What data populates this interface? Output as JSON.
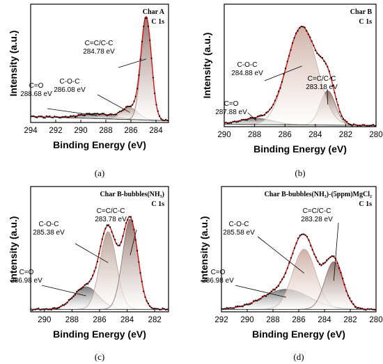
{
  "chart_data": [
    {
      "type": "line",
      "panel": "(a)",
      "title": "Char A",
      "subtitle": "C 1s",
      "xlabel": "Binding Energy (eV)",
      "ylabel": "Intensity (a.u.)",
      "xlim": [
        294,
        283
      ],
      "xticks": [
        294,
        292,
        290,
        288,
        286,
        284
      ],
      "ylim": [
        0,
        1.0
      ],
      "peaks": [
        {
          "label": "C=C/C-C",
          "label_value": "284.78 eV",
          "center": 284.78,
          "height": 0.86,
          "sigma": 0.42,
          "color": "#8a6a62"
        },
        {
          "label": "C-O-C",
          "label_value": "286.08 eV",
          "center": 286.08,
          "height": 0.1,
          "sigma": 0.65,
          "color": "#b49a8e"
        },
        {
          "label": "C=O",
          "label_value": "288.68 eV",
          "center": 288.68,
          "height": 0.04,
          "sigma": 1.3,
          "color": "#6a6a6a"
        }
      ],
      "baseline": [
        0.05,
        0.015
      ]
    },
    {
      "type": "line",
      "panel": "(b)",
      "title": "Char B",
      "subtitle": "C 1s",
      "xlabel": "Binding Energy (eV)",
      "ylabel": "Intensity (a.u.)",
      "xlim": [
        290,
        280
      ],
      "xticks": [
        290,
        288,
        286,
        284,
        282,
        280
      ],
      "ylim": [
        0,
        1.0
      ],
      "peaks": [
        {
          "label": "C-O-C",
          "label_value": "284.88 eV",
          "center": 284.88,
          "height": 0.8,
          "sigma": 1.0,
          "color": "#caa89c"
        },
        {
          "label": "C=C/C-C",
          "label_value": "283.18 eV",
          "center": 283.18,
          "height": 0.28,
          "sigma": 0.5,
          "color": "#8a6a62"
        },
        {
          "label": "C=O",
          "label_value": "287.88 eV",
          "center": 287.88,
          "height": 0.05,
          "sigma": 1.1,
          "color": "#6a6a6a"
        }
      ],
      "baseline": [
        0.02,
        0.01
      ]
    },
    {
      "type": "line",
      "panel": "(c)",
      "title": "Char B-bubbles(NH₃)",
      "subtitle": "C 1s",
      "xlabel": "Binding Energy (eV)",
      "ylabel": "Intensity (a.u.)",
      "xlim": [
        291,
        281
      ],
      "xticks": [
        290,
        288,
        286,
        284,
        282
      ],
      "ylim": [
        0,
        1.0
      ],
      "peaks": [
        {
          "label": "C=C/C-C",
          "label_value": "283.78 eV",
          "center": 283.78,
          "height": 0.72,
          "sigma": 0.55,
          "color": "#8a6a62"
        },
        {
          "label": "C-O-C",
          "label_value": "285.38 eV",
          "center": 285.38,
          "height": 0.62,
          "sigma": 0.6,
          "color": "#b49a8e"
        },
        {
          "label": "C=O",
          "label_value": "286.98 eV",
          "center": 286.98,
          "height": 0.18,
          "sigma": 0.9,
          "color": "#6a6a6a"
        }
      ],
      "baseline": [
        0.02,
        0.02
      ]
    },
    {
      "type": "line",
      "panel": "(d)",
      "title": "Char B-bubbles(NH₃)-(5ppm)MgCl₂",
      "subtitle": "C 1s",
      "xlabel": "Binding Energy (eV)",
      "ylabel": "Intensity (a.u.)",
      "xlim": [
        292,
        280
      ],
      "xticks": [
        292,
        290,
        288,
        286,
        284,
        282,
        280
      ],
      "ylim": [
        0,
        1.0
      ],
      "peaks": [
        {
          "label": "C=C/C-C",
          "label_value": "283.28 eV",
          "center": 283.28,
          "height": 0.38,
          "sigma": 0.7,
          "color": "#8a6a62"
        },
        {
          "label": "C-O-C",
          "label_value": "285.58 eV",
          "center": 285.58,
          "height": 0.48,
          "sigma": 0.9,
          "color": "#caa89c"
        },
        {
          "label": "C=O",
          "label_value": "286.98 eV",
          "center": 286.98,
          "height": 0.16,
          "sigma": 1.8,
          "color": "#6a6a6a"
        }
      ],
      "baseline": [
        0.02,
        0.02
      ]
    }
  ]
}
